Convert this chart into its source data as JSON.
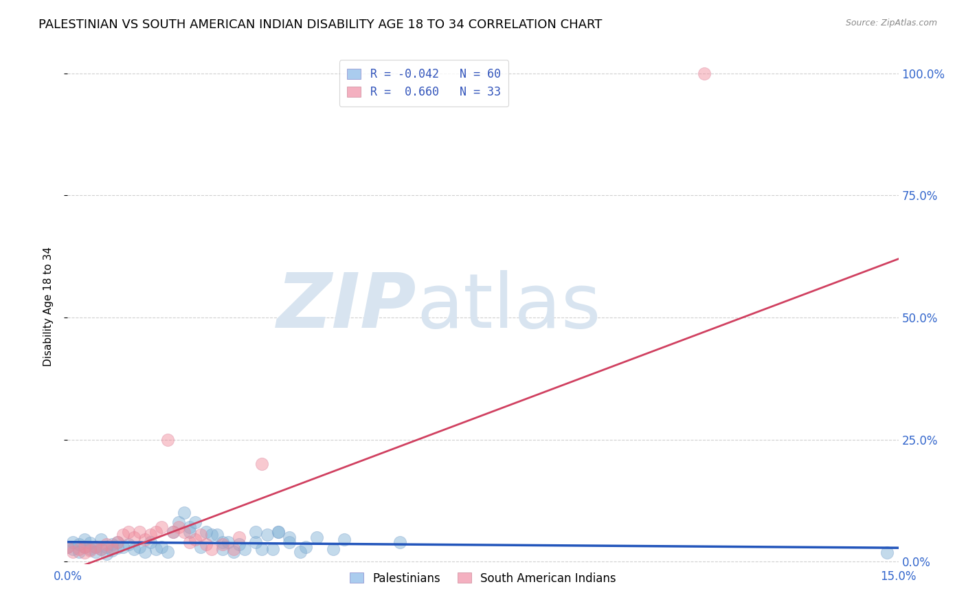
{
  "title": "PALESTINIAN VS SOUTH AMERICAN INDIAN DISABILITY AGE 18 TO 34 CORRELATION CHART",
  "source": "Source: ZipAtlas.com",
  "ylabel": "Disability Age 18 to 34",
  "right_ytick_labels": [
    "0.0%",
    "25.0%",
    "50.0%",
    "75.0%",
    "100.0%"
  ],
  "xlim": [
    0.0,
    0.15
  ],
  "ylim": [
    -0.005,
    1.05
  ],
  "ytick_vals": [
    0.0,
    0.25,
    0.5,
    0.75,
    1.0
  ],
  "xtick_vals": [
    0.0,
    0.15
  ],
  "watermark_zip": "ZIP",
  "watermark_atlas": "atlas",
  "legend_line1": "R = -0.042   N = 60",
  "legend_line2": "R =  0.660   N = 33",
  "blue_line": {
    "x": [
      0.0,
      0.15
    ],
    "y": [
      0.04,
      0.028
    ]
  },
  "pink_line": {
    "x": [
      0.0,
      0.15
    ],
    "y": [
      -0.02,
      0.62
    ]
  },
  "palestinians": [
    [
      0.0,
      0.03
    ],
    [
      0.001,
      0.04
    ],
    [
      0.001,
      0.025
    ],
    [
      0.002,
      0.035
    ],
    [
      0.002,
      0.02
    ],
    [
      0.003,
      0.045
    ],
    [
      0.003,
      0.03
    ],
    [
      0.004,
      0.025
    ],
    [
      0.004,
      0.038
    ],
    [
      0.005,
      0.03
    ],
    [
      0.005,
      0.02
    ],
    [
      0.006,
      0.045
    ],
    [
      0.006,
      0.025
    ],
    [
      0.007,
      0.03
    ],
    [
      0.007,
      0.015
    ],
    [
      0.008,
      0.035
    ],
    [
      0.008,
      0.022
    ],
    [
      0.009,
      0.04
    ],
    [
      0.009,
      0.028
    ],
    [
      0.01,
      0.03
    ],
    [
      0.011,
      0.035
    ],
    [
      0.012,
      0.025
    ],
    [
      0.013,
      0.03
    ],
    [
      0.014,
      0.02
    ],
    [
      0.015,
      0.04
    ],
    [
      0.016,
      0.025
    ],
    [
      0.017,
      0.03
    ],
    [
      0.018,
      0.02
    ],
    [
      0.019,
      0.06
    ],
    [
      0.02,
      0.08
    ],
    [
      0.021,
      0.1
    ],
    [
      0.022,
      0.06
    ],
    [
      0.022,
      0.07
    ],
    [
      0.023,
      0.08
    ],
    [
      0.024,
      0.03
    ],
    [
      0.025,
      0.06
    ],
    [
      0.026,
      0.055
    ],
    [
      0.027,
      0.055
    ],
    [
      0.028,
      0.04
    ],
    [
      0.028,
      0.025
    ],
    [
      0.029,
      0.04
    ],
    [
      0.03,
      0.02
    ],
    [
      0.031,
      0.035
    ],
    [
      0.032,
      0.025
    ],
    [
      0.034,
      0.04
    ],
    [
      0.034,
      0.06
    ],
    [
      0.035,
      0.025
    ],
    [
      0.036,
      0.055
    ],
    [
      0.037,
      0.025
    ],
    [
      0.038,
      0.06
    ],
    [
      0.038,
      0.06
    ],
    [
      0.04,
      0.05
    ],
    [
      0.04,
      0.04
    ],
    [
      0.042,
      0.02
    ],
    [
      0.043,
      0.03
    ],
    [
      0.045,
      0.05
    ],
    [
      0.048,
      0.025
    ],
    [
      0.05,
      0.045
    ],
    [
      0.06,
      0.04
    ],
    [
      0.148,
      0.018
    ]
  ],
  "south_american_indians": [
    [
      0.0,
      0.03
    ],
    [
      0.001,
      0.02
    ],
    [
      0.002,
      0.025
    ],
    [
      0.003,
      0.018
    ],
    [
      0.003,
      0.03
    ],
    [
      0.004,
      0.022
    ],
    [
      0.005,
      0.03
    ],
    [
      0.006,
      0.025
    ],
    [
      0.007,
      0.035
    ],
    [
      0.008,
      0.028
    ],
    [
      0.009,
      0.04
    ],
    [
      0.01,
      0.055
    ],
    [
      0.011,
      0.06
    ],
    [
      0.012,
      0.05
    ],
    [
      0.013,
      0.06
    ],
    [
      0.014,
      0.045
    ],
    [
      0.015,
      0.055
    ],
    [
      0.016,
      0.06
    ],
    [
      0.017,
      0.07
    ],
    [
      0.018,
      0.25
    ],
    [
      0.019,
      0.06
    ],
    [
      0.02,
      0.07
    ],
    [
      0.021,
      0.06
    ],
    [
      0.022,
      0.04
    ],
    [
      0.023,
      0.045
    ],
    [
      0.024,
      0.055
    ],
    [
      0.025,
      0.035
    ],
    [
      0.026,
      0.025
    ],
    [
      0.028,
      0.035
    ],
    [
      0.03,
      0.025
    ],
    [
      0.031,
      0.05
    ],
    [
      0.035,
      0.2
    ],
    [
      0.115,
      1.0
    ]
  ],
  "blue_color": "#7bafd4",
  "pink_color": "#f08898",
  "blue_line_color": "#2255bb",
  "pink_line_color": "#d04060",
  "title_fontsize": 13,
  "axis_label_fontsize": 11,
  "tick_fontsize": 12,
  "watermark_color": "#d8e4f0",
  "background_color": "#ffffff",
  "grid_color": "#d0d0d0"
}
